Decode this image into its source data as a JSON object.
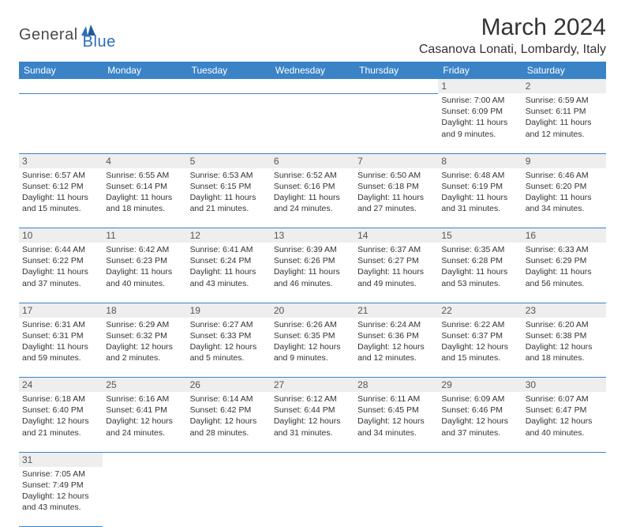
{
  "logo": {
    "general": "General",
    "blue": "Blue"
  },
  "title": "March 2024",
  "location": "Casanova Lonati, Lombardy, Italy",
  "colors": {
    "header_bg": "#3b83c7",
    "header_fg": "#ffffff",
    "daynum_bg": "#eeeeee",
    "rule": "#3b83c7",
    "text": "#333333",
    "logo_gray": "#4a4a4a",
    "logo_blue": "#2b6fb5"
  },
  "typography": {
    "title_fontsize": 30,
    "location_fontsize": 16,
    "dayheader_fontsize": 12,
    "cell_fontsize": 10.5
  },
  "day_headers": [
    "Sunday",
    "Monday",
    "Tuesday",
    "Wednesday",
    "Thursday",
    "Friday",
    "Saturday"
  ],
  "weeks": [
    [
      null,
      null,
      null,
      null,
      null,
      {
        "num": "1",
        "sunrise": "7:00 AM",
        "sunset": "6:09 PM",
        "dl1": "Daylight: 11 hours",
        "dl2": "and 9 minutes."
      },
      {
        "num": "2",
        "sunrise": "6:59 AM",
        "sunset": "6:11 PM",
        "dl1": "Daylight: 11 hours",
        "dl2": "and 12 minutes."
      }
    ],
    [
      {
        "num": "3",
        "sunrise": "6:57 AM",
        "sunset": "6:12 PM",
        "dl1": "Daylight: 11 hours",
        "dl2": "and 15 minutes."
      },
      {
        "num": "4",
        "sunrise": "6:55 AM",
        "sunset": "6:14 PM",
        "dl1": "Daylight: 11 hours",
        "dl2": "and 18 minutes."
      },
      {
        "num": "5",
        "sunrise": "6:53 AM",
        "sunset": "6:15 PM",
        "dl1": "Daylight: 11 hours",
        "dl2": "and 21 minutes."
      },
      {
        "num": "6",
        "sunrise": "6:52 AM",
        "sunset": "6:16 PM",
        "dl1": "Daylight: 11 hours",
        "dl2": "and 24 minutes."
      },
      {
        "num": "7",
        "sunrise": "6:50 AM",
        "sunset": "6:18 PM",
        "dl1": "Daylight: 11 hours",
        "dl2": "and 27 minutes."
      },
      {
        "num": "8",
        "sunrise": "6:48 AM",
        "sunset": "6:19 PM",
        "dl1": "Daylight: 11 hours",
        "dl2": "and 31 minutes."
      },
      {
        "num": "9",
        "sunrise": "6:46 AM",
        "sunset": "6:20 PM",
        "dl1": "Daylight: 11 hours",
        "dl2": "and 34 minutes."
      }
    ],
    [
      {
        "num": "10",
        "sunrise": "6:44 AM",
        "sunset": "6:22 PM",
        "dl1": "Daylight: 11 hours",
        "dl2": "and 37 minutes."
      },
      {
        "num": "11",
        "sunrise": "6:42 AM",
        "sunset": "6:23 PM",
        "dl1": "Daylight: 11 hours",
        "dl2": "and 40 minutes."
      },
      {
        "num": "12",
        "sunrise": "6:41 AM",
        "sunset": "6:24 PM",
        "dl1": "Daylight: 11 hours",
        "dl2": "and 43 minutes."
      },
      {
        "num": "13",
        "sunrise": "6:39 AM",
        "sunset": "6:26 PM",
        "dl1": "Daylight: 11 hours",
        "dl2": "and 46 minutes."
      },
      {
        "num": "14",
        "sunrise": "6:37 AM",
        "sunset": "6:27 PM",
        "dl1": "Daylight: 11 hours",
        "dl2": "and 49 minutes."
      },
      {
        "num": "15",
        "sunrise": "6:35 AM",
        "sunset": "6:28 PM",
        "dl1": "Daylight: 11 hours",
        "dl2": "and 53 minutes."
      },
      {
        "num": "16",
        "sunrise": "6:33 AM",
        "sunset": "6:29 PM",
        "dl1": "Daylight: 11 hours",
        "dl2": "and 56 minutes."
      }
    ],
    [
      {
        "num": "17",
        "sunrise": "6:31 AM",
        "sunset": "6:31 PM",
        "dl1": "Daylight: 11 hours",
        "dl2": "and 59 minutes."
      },
      {
        "num": "18",
        "sunrise": "6:29 AM",
        "sunset": "6:32 PM",
        "dl1": "Daylight: 12 hours",
        "dl2": "and 2 minutes."
      },
      {
        "num": "19",
        "sunrise": "6:27 AM",
        "sunset": "6:33 PM",
        "dl1": "Daylight: 12 hours",
        "dl2": "and 5 minutes."
      },
      {
        "num": "20",
        "sunrise": "6:26 AM",
        "sunset": "6:35 PM",
        "dl1": "Daylight: 12 hours",
        "dl2": "and 9 minutes."
      },
      {
        "num": "21",
        "sunrise": "6:24 AM",
        "sunset": "6:36 PM",
        "dl1": "Daylight: 12 hours",
        "dl2": "and 12 minutes."
      },
      {
        "num": "22",
        "sunrise": "6:22 AM",
        "sunset": "6:37 PM",
        "dl1": "Daylight: 12 hours",
        "dl2": "and 15 minutes."
      },
      {
        "num": "23",
        "sunrise": "6:20 AM",
        "sunset": "6:38 PM",
        "dl1": "Daylight: 12 hours",
        "dl2": "and 18 minutes."
      }
    ],
    [
      {
        "num": "24",
        "sunrise": "6:18 AM",
        "sunset": "6:40 PM",
        "dl1": "Daylight: 12 hours",
        "dl2": "and 21 minutes."
      },
      {
        "num": "25",
        "sunrise": "6:16 AM",
        "sunset": "6:41 PM",
        "dl1": "Daylight: 12 hours",
        "dl2": "and 24 minutes."
      },
      {
        "num": "26",
        "sunrise": "6:14 AM",
        "sunset": "6:42 PM",
        "dl1": "Daylight: 12 hours",
        "dl2": "and 28 minutes."
      },
      {
        "num": "27",
        "sunrise": "6:12 AM",
        "sunset": "6:44 PM",
        "dl1": "Daylight: 12 hours",
        "dl2": "and 31 minutes."
      },
      {
        "num": "28",
        "sunrise": "6:11 AM",
        "sunset": "6:45 PM",
        "dl1": "Daylight: 12 hours",
        "dl2": "and 34 minutes."
      },
      {
        "num": "29",
        "sunrise": "6:09 AM",
        "sunset": "6:46 PM",
        "dl1": "Daylight: 12 hours",
        "dl2": "and 37 minutes."
      },
      {
        "num": "30",
        "sunrise": "6:07 AM",
        "sunset": "6:47 PM",
        "dl1": "Daylight: 12 hours",
        "dl2": "and 40 minutes."
      }
    ],
    [
      {
        "num": "31",
        "sunrise": "7:05 AM",
        "sunset": "7:49 PM",
        "dl1": "Daylight: 12 hours",
        "dl2": "and 43 minutes."
      },
      null,
      null,
      null,
      null,
      null,
      null
    ]
  ],
  "labels": {
    "sunrise_prefix": "Sunrise: ",
    "sunset_prefix": "Sunset: "
  }
}
